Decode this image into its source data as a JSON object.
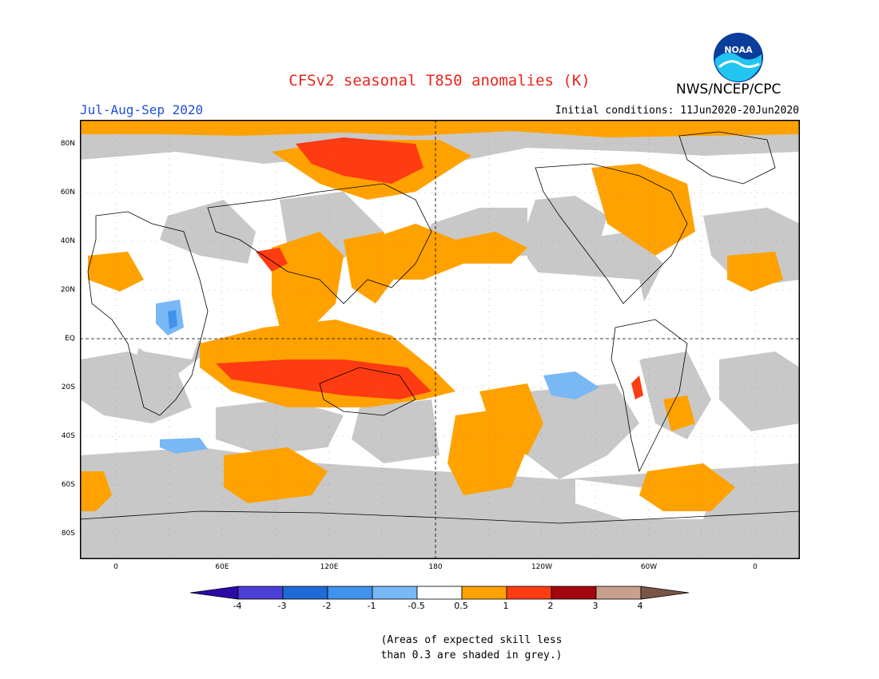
{
  "header": {
    "title": "CFSv2 seasonal T850 anomalies (K)",
    "period": "Jul-Aug-Sep 2020",
    "initial_conditions": "Initial conditions: 11Jun2020-20Jun2020",
    "agency": "NWS/NCEP/CPC",
    "logo_text": "NOAA"
  },
  "map": {
    "lat_labels": [
      "80N",
      "60N",
      "40N",
      "20N",
      "EQ",
      "20S",
      "40S",
      "60S",
      "80S"
    ],
    "lon_labels": [
      "0",
      "60E",
      "120E",
      "180",
      "120W",
      "60W",
      "0"
    ],
    "skill_mask_color": "#c8c8c8",
    "ocean_land_background": "#ffffff"
  },
  "colorbar": {
    "labels": [
      "-4",
      "-3",
      "-2",
      "-1",
      "-0.5",
      "0.5",
      "1",
      "2",
      "3",
      "4"
    ],
    "colors": [
      "#2b0aa5",
      "#4a3fd6",
      "#1f6ad6",
      "#3f93ec",
      "#78b8f5",
      "#ffffff",
      "#ffa200",
      "#ff3b12",
      "#a3060c",
      "#c9a08d",
      "#7a5546"
    ]
  },
  "footnote": {
    "line1": "(Areas of expected skill less",
    "line2": "than 0.3 are shaded in grey.)"
  }
}
